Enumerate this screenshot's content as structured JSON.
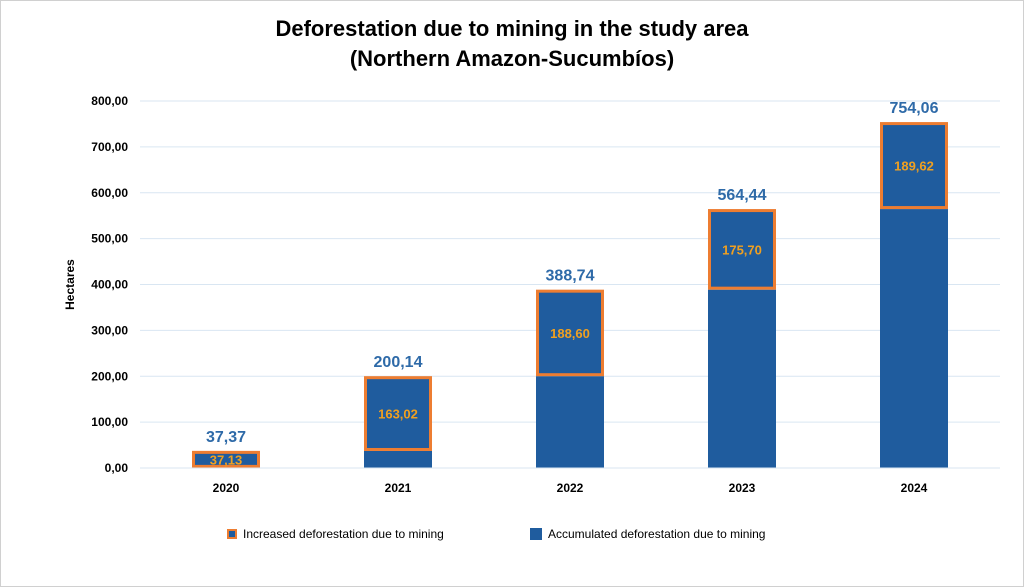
{
  "chart_data": {
    "type": "bar",
    "stacked": true,
    "title": "Deforestation due to mining in the study area",
    "subtitle": "(Northern Amazon-Sucumbíos)",
    "xlabel": "",
    "ylabel": "Hectares",
    "categories": [
      "2020",
      "2021",
      "2022",
      "2023",
      "2024"
    ],
    "yticks": [
      "0,00",
      "100,00",
      "200,00",
      "300,00",
      "400,00",
      "500,00",
      "600,00",
      "700,00",
      "800,00"
    ],
    "ylim": [
      0,
      800
    ],
    "grid": true,
    "legend_position": "bottom",
    "series": [
      {
        "name": "Accumulated deforestation due to mining",
        "values": [
          0.24,
          37.12,
          200.14,
          388.74,
          564.44
        ],
        "color": "#1f5c9e"
      },
      {
        "name": "Increased deforestation due to mining",
        "values": [
          37.13,
          163.02,
          188.6,
          175.7,
          189.62
        ],
        "labels": [
          "37,13",
          "163,02",
          "188,60",
          "175,70",
          "189,62"
        ],
        "color": "#1f5c9e",
        "border_color": "#ed7d31"
      }
    ],
    "totals": [
      37.37,
      200.14,
      388.74,
      564.44,
      754.06
    ],
    "total_labels": [
      "37,37",
      "200,14",
      "388,74",
      "564,44",
      "754,06"
    ],
    "total_label_color": "#2e6aa8",
    "increase_label_color": "#f0a020"
  }
}
